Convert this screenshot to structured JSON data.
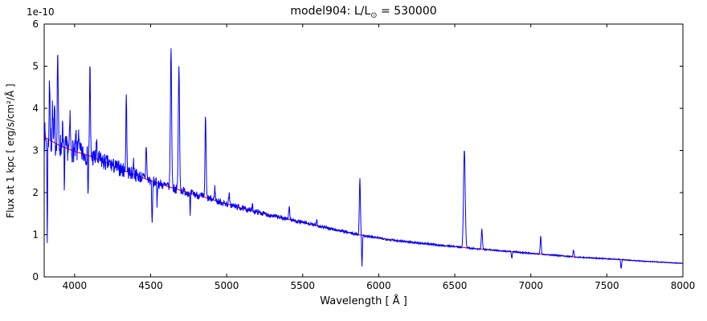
{
  "chart_data": {
    "type": "line",
    "title": "model904: L/L⊙ = 530000",
    "title_parts": {
      "prefix": "model904: L/L",
      "subscript": "⊙",
      "suffix": " = 530000"
    },
    "xlabel": "Wavelength [ Å ]",
    "ylabel": "Flux at 1 kpc [ erg/s/cm²/Å ]",
    "offset_text": "1e-10",
    "xlim": [
      3800,
      8000
    ],
    "ylim": [
      0,
      6
    ],
    "xticks": [
      4000,
      4500,
      5000,
      5500,
      6000,
      6500,
      7000,
      7500,
      8000
    ],
    "yticks": [
      0,
      1,
      2,
      3,
      4,
      5,
      6
    ],
    "grid": false,
    "legend": "none",
    "series": [
      {
        "name": "observed spectrum",
        "color": "#0000ff"
      },
      {
        "name": "continuum model",
        "color": "#ff0000"
      }
    ],
    "frame_color": "#000000",
    "continuum": {
      "x": [
        3800,
        3900,
        4000,
        4100,
        4200,
        4300,
        4400,
        4500,
        4600,
        4700,
        4800,
        4900,
        5000,
        5100,
        5200,
        5300,
        5400,
        5500,
        5600,
        5700,
        5800,
        5900,
        6000,
        6100,
        6200,
        6300,
        6400,
        6500,
        6600,
        6700,
        6800,
        6900,
        7000,
        7100,
        7200,
        7300,
        7400,
        7500,
        7600,
        7700,
        7800,
        7900,
        8000
      ],
      "y": [
        3.32,
        3.12,
        2.98,
        2.87,
        2.72,
        2.56,
        2.42,
        2.28,
        2.16,
        2.05,
        1.95,
        1.84,
        1.73,
        1.63,
        1.54,
        1.45,
        1.37,
        1.29,
        1.21,
        1.13,
        1.05,
        0.98,
        0.92,
        0.87,
        0.83,
        0.79,
        0.75,
        0.72,
        0.68,
        0.65,
        0.62,
        0.59,
        0.56,
        0.53,
        0.5,
        0.47,
        0.45,
        0.43,
        0.41,
        0.38,
        0.36,
        0.34,
        0.32
      ]
    },
    "lines": [
      [
        3820,
        -2.3,
        2.0
      ],
      [
        3835,
        1.5,
        2.5
      ],
      [
        3855,
        0.9,
        2.0
      ],
      [
        3868,
        0.8,
        2.0
      ],
      [
        3889,
        2.3,
        3.0
      ],
      [
        3920,
        0.5,
        2.0
      ],
      [
        3933,
        -0.9,
        2.0
      ],
      [
        3970,
        0.75,
        2.5
      ],
      [
        4009,
        0.4,
        2.0
      ],
      [
        4026,
        0.6,
        2.5
      ],
      [
        4089,
        -0.85,
        2.0
      ],
      [
        4101,
        2.1,
        3.0
      ],
      [
        4144,
        0.35,
        2.5
      ],
      [
        4340,
        1.85,
        3.0
      ],
      [
        4388,
        0.3,
        2.5
      ],
      [
        4471,
        0.85,
        3.0
      ],
      [
        4510,
        -1.1,
        2.5
      ],
      [
        4542,
        -0.5,
        2.0
      ],
      [
        4634,
        3.3,
        4.0
      ],
      [
        4686,
        2.9,
        4.0
      ],
      [
        4760,
        -0.55,
        2.0
      ],
      [
        4861,
        1.95,
        3.5
      ],
      [
        4922,
        0.3,
        3.0
      ],
      [
        5016,
        0.25,
        3.0
      ],
      [
        5169,
        0.12,
        3.0
      ],
      [
        5411,
        0.32,
        3.5
      ],
      [
        5592,
        0.15,
        3.0
      ],
      [
        5876,
        1.35,
        3.5
      ],
      [
        5890,
        -0.72,
        2.5
      ],
      [
        6563,
        2.32,
        5.5
      ],
      [
        6678,
        0.5,
        3.5
      ],
      [
        6875,
        -0.15,
        3.0
      ],
      [
        7065,
        0.42,
        3.5
      ],
      [
        7281,
        0.15,
        3.5
      ],
      [
        7594,
        -0.22,
        3.0
      ]
    ],
    "noise": {
      "seed": 7,
      "base": 0.028,
      "blue_extra": 0.085,
      "decay": 700
    }
  }
}
